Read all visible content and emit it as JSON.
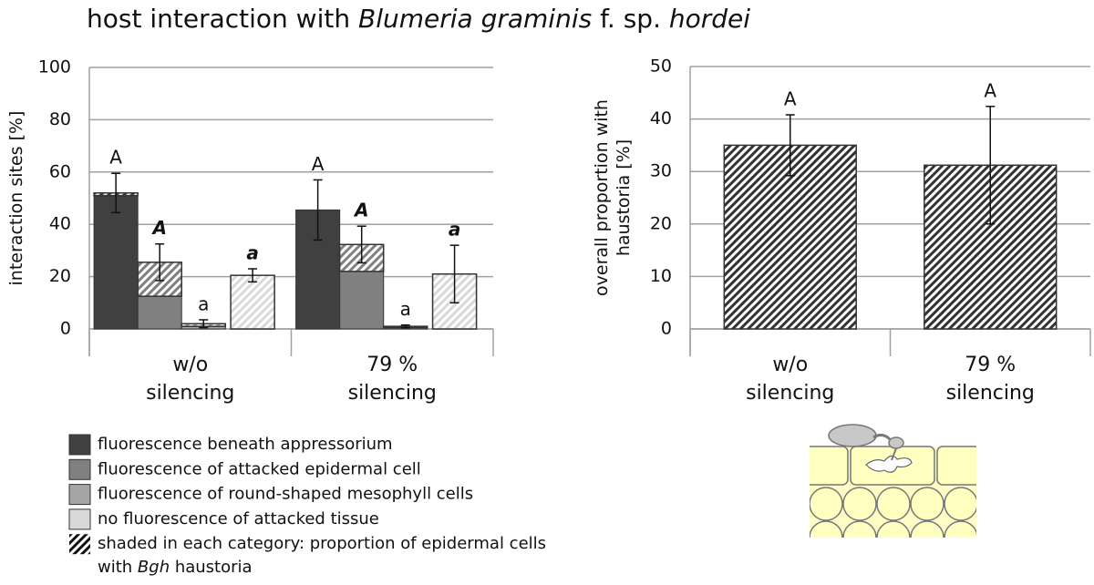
{
  "title_parts": [
    "host interaction with ",
    "Blumeria graminis",
    " f. sp. ",
    "hordei"
  ],
  "chart_data": [
    {
      "type": "bar",
      "ylabel": [
        "interaction sites [%]"
      ],
      "categories": [
        [
          "w/o",
          "silencing"
        ],
        [
          "79 %",
          "silencing"
        ]
      ],
      "ylim": [
        0,
        100
      ],
      "yticks": [
        0,
        20,
        40,
        60,
        80,
        100
      ],
      "grid": true,
      "series": [
        {
          "name": "fluorescence beneath appressorium",
          "color": "#404040",
          "values": [
            51,
            45.5
          ],
          "shaded_values": [
            1,
            0
          ],
          "errors": [
            7.5,
            11.5
          ],
          "letters": [
            "A",
            "A"
          ],
          "letters_bold_italic": false
        },
        {
          "name": "fluorescence of attacked epidermal cell",
          "color": "#808080",
          "values": [
            12.5,
            22
          ],
          "shaded_values": [
            13,
            10.3
          ],
          "errors": [
            7,
            7
          ],
          "letters": [
            "A",
            "A"
          ],
          "letters_bold_italic": true
        },
        {
          "name": "fluorescence of round-shaped mesophyll cells",
          "color": "#a6a6a6",
          "values": [
            1,
            0.5
          ],
          "shaded_values": [
            1,
            0.5
          ],
          "errors": [
            1.5,
            0.5
          ],
          "letters": [
            "a",
            "a"
          ],
          "letters_bold_italic": false
        },
        {
          "name": "no fluorescence of attacked tissue",
          "color": "#d9d9d9",
          "values": [
            0,
            0
          ],
          "shaded_values": [
            20.5,
            21
          ],
          "errors": [
            2.5,
            11
          ],
          "letters": [
            "a",
            "a"
          ],
          "letters_bold_italic": true
        }
      ],
      "shaded_note": [
        "shaded in each category: proportion of epidermal cells",
        "with ",
        "Bgh",
        " haustoria"
      ]
    },
    {
      "type": "bar",
      "ylabel": [
        "overall proportion with",
        "haustoria [%]"
      ],
      "categories": [
        [
          "w/o",
          "silencing"
        ],
        [
          "79 %",
          "silencing"
        ]
      ],
      "ylim": [
        0,
        50
      ],
      "yticks": [
        0,
        10,
        20,
        30,
        40,
        50
      ],
      "grid": true,
      "series": [
        {
          "color": "#333333",
          "values": [
            0,
            0
          ],
          "shaded_values": [
            35,
            31.2
          ],
          "errors": [
            5.8,
            11.2
          ],
          "letters": [
            "A",
            "A"
          ],
          "letters_bold_italic": false
        }
      ]
    }
  ]
}
